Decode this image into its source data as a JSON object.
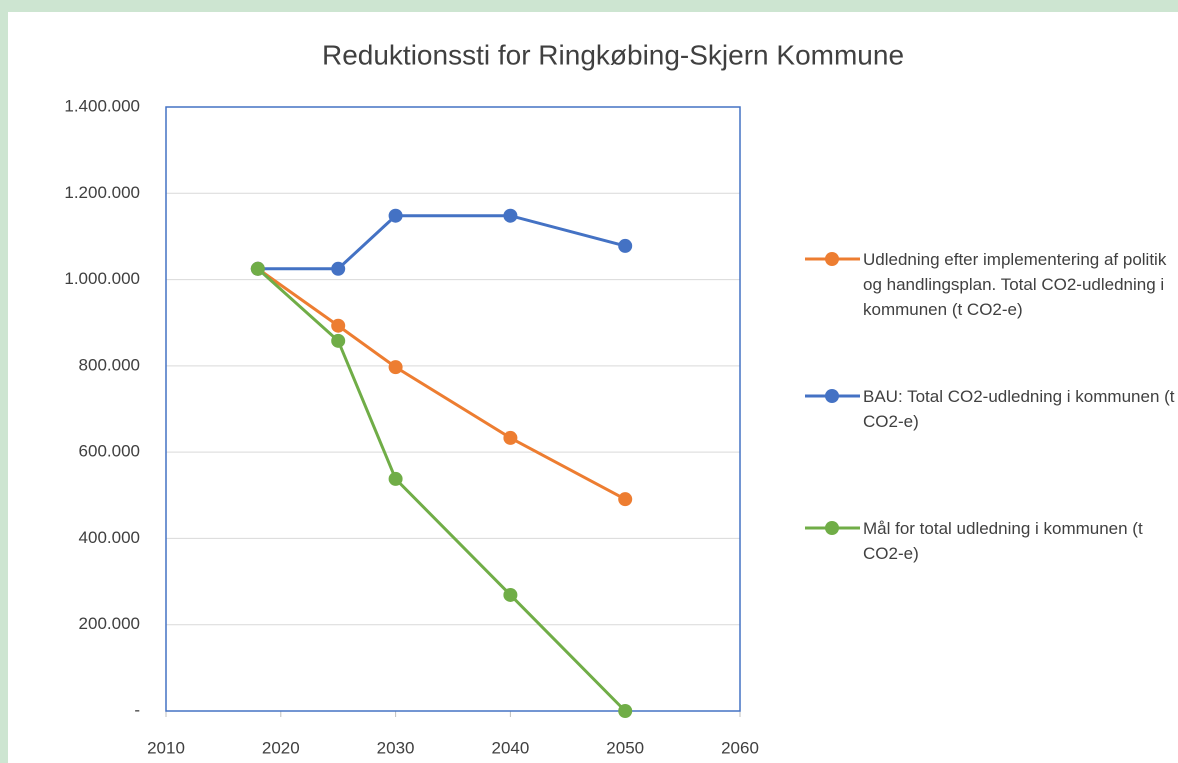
{
  "chart_data": {
    "type": "line",
    "title": "Reduktionssti for Ringkøbing-Skjern Kommune",
    "x": [
      2018,
      2025,
      2030,
      2040,
      2050
    ],
    "series": [
      {
        "name": "Udledning efter implementering af politik og handlingsplan. Total CO2-udledning i kommunen (t CO2-e)",
        "color": "#ed7d31",
        "values": [
          1025000,
          893000,
          797000,
          633000,
          491000
        ]
      },
      {
        "name": "BAU: Total CO2-udledning i kommunen (t CO2-e)",
        "color": "#4472c4",
        "values": [
          1025000,
          1025000,
          1148000,
          1148000,
          1078000
        ]
      },
      {
        "name": "Mål for total udledning i kommunen (t CO2-e)",
        "color": "#70ad47",
        "values": [
          1025000,
          858000,
          538000,
          269000,
          0
        ]
      }
    ],
    "xlim": [
      2010,
      2060
    ],
    "xticks": [
      2010,
      2020,
      2030,
      2040,
      2050,
      2060
    ],
    "ylim": [
      0,
      1400000
    ],
    "yticks": [
      {
        "value": 0,
        "label": "-"
      },
      {
        "value": 200000,
        "label": "200.000"
      },
      {
        "value": 400000,
        "label": "400.000"
      },
      {
        "value": 600000,
        "label": "600.000"
      },
      {
        "value": 800000,
        "label": "800.000"
      },
      {
        "value": 1000000,
        "label": "1.000.000"
      },
      {
        "value": 1200000,
        "label": "1.200.000"
      },
      {
        "value": 1400000,
        "label": "1.400.000"
      }
    ],
    "grid": true,
    "legend": "right"
  }
}
